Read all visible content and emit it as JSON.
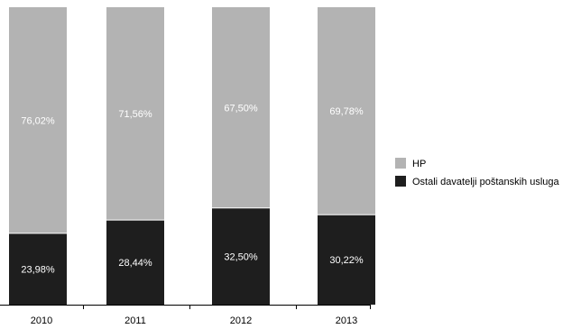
{
  "chart_data": {
    "type": "bar",
    "stacked": true,
    "normalized": true,
    "categories": [
      "2010",
      "2011",
      "2012",
      "2013"
    ],
    "series": [
      {
        "name": "Ostali davatelji poštanskih usluga",
        "values": [
          23.98,
          28.44,
          32.5,
          30.22
        ],
        "labels": [
          "23,98%",
          "28,44%",
          "32,50%",
          "30,22%"
        ],
        "color": "#1e1e1e"
      },
      {
        "name": "HP",
        "values": [
          76.02,
          71.56,
          67.5,
          69.78
        ],
        "labels": [
          "76,02%",
          "71,56%",
          "67,50%",
          "69,78%"
        ],
        "color": "#b3b3b3"
      }
    ],
    "ylim": [
      0,
      100
    ],
    "grid": false,
    "legend_position": "right",
    "legend_order": [
      "HP",
      "Ostali davatelji poštanskih usluga"
    ],
    "title": "",
    "xlabel": "",
    "ylabel": ""
  }
}
